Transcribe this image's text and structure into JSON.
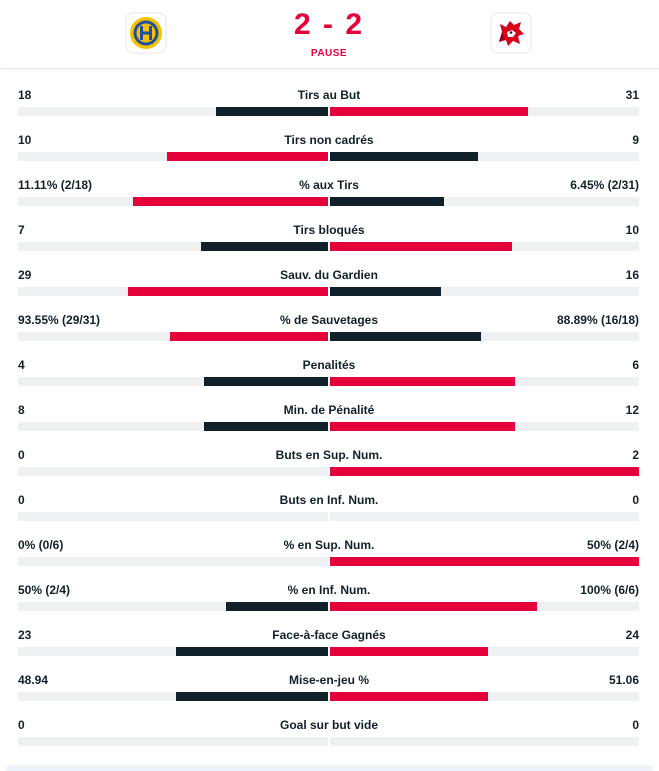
{
  "match": {
    "score": "2 - 2",
    "status": "PAUSE"
  },
  "colors": {
    "lead": "#e4003a",
    "trail": "#10212b",
    "track": "#eef0f2"
  },
  "icons": {
    "home_logo": "hcd-davos-logo-icon",
    "away_logo": "lausanne-hc-lion-logo-icon"
  },
  "stats": [
    {
      "label": "Tirs au But",
      "home": "18",
      "away": "31",
      "home_frac": 0.36,
      "away_frac": 0.64,
      "home_lead": false,
      "away_lead": true
    },
    {
      "label": "Tirs non cadrés",
      "home": "10",
      "away": "9",
      "home_frac": 0.52,
      "away_frac": 0.48,
      "home_lead": true,
      "away_lead": false
    },
    {
      "label": "% aux Tirs",
      "home": "11.11% (2/18)",
      "away": "6.45% (2/31)",
      "home_frac": 0.63,
      "away_frac": 0.37,
      "home_lead": true,
      "away_lead": false
    },
    {
      "label": "Tirs bloqués",
      "home": "7",
      "away": "10",
      "home_frac": 0.41,
      "away_frac": 0.59,
      "home_lead": false,
      "away_lead": true
    },
    {
      "label": "Sauv. du Gardien",
      "home": "29",
      "away": "16",
      "home_frac": 0.645,
      "away_frac": 0.36,
      "home_lead": true,
      "away_lead": false
    },
    {
      "label": "% de Sauvetages",
      "home": "93.55% (29/31)",
      "away": "88.89% (16/18)",
      "home_frac": 0.51,
      "away_frac": 0.49,
      "home_lead": true,
      "away_lead": false
    },
    {
      "label": "Penalités",
      "home": "4",
      "away": "6",
      "home_frac": 0.4,
      "away_frac": 0.6,
      "home_lead": false,
      "away_lead": true
    },
    {
      "label": "Min. de Pénalité",
      "home": "8",
      "away": "12",
      "home_frac": 0.4,
      "away_frac": 0.6,
      "home_lead": false,
      "away_lead": true
    },
    {
      "label": "Buts en Sup. Num.",
      "home": "0",
      "away": "2",
      "home_frac": 0.0,
      "away_frac": 1.0,
      "home_lead": false,
      "away_lead": true
    },
    {
      "label": "Buts en Inf. Num.",
      "home": "0",
      "away": "0",
      "home_frac": 0.0,
      "away_frac": 0.0,
      "home_lead": false,
      "away_lead": false
    },
    {
      "label": "% en Sup. Num.",
      "home": "0% (0/6)",
      "away": "50% (2/4)",
      "home_frac": 0.0,
      "away_frac": 1.0,
      "home_lead": false,
      "away_lead": true
    },
    {
      "label": "% en Inf. Num.",
      "home": "50% (2/4)",
      "away": "100% (6/6)",
      "home_frac": 0.33,
      "away_frac": 0.67,
      "home_lead": false,
      "away_lead": true
    },
    {
      "label": "Face-à-face Gagnés",
      "home": "23",
      "away": "24",
      "home_frac": 0.49,
      "away_frac": 0.51,
      "home_lead": false,
      "away_lead": true
    },
    {
      "label": "Mise-en-jeu %",
      "home": "48.94",
      "away": "51.06",
      "home_frac": 0.49,
      "away_frac": 0.51,
      "home_lead": false,
      "away_lead": true
    },
    {
      "label": "Goal sur but vide",
      "home": "0",
      "away": "0",
      "home_frac": 0.0,
      "away_frac": 0.0,
      "home_lead": false,
      "away_lead": false
    }
  ]
}
